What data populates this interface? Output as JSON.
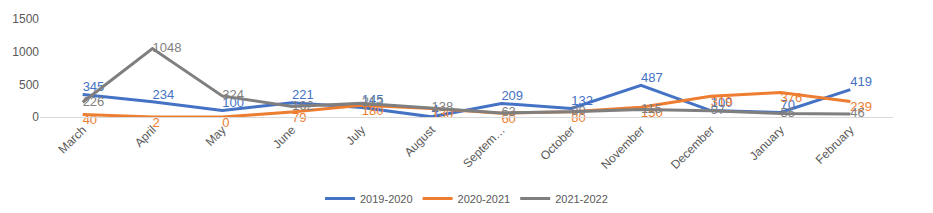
{
  "chart_data": {
    "type": "line",
    "categories": [
      "March",
      "April",
      "May",
      "June",
      "July",
      "August",
      "Septem…",
      "October",
      "November",
      "December",
      "January",
      "February"
    ],
    "series": [
      {
        "name": "2019-2020",
        "color": "#4472c4",
        "values": [
          345,
          234,
          100,
          221,
          145,
          4,
          209,
          132,
          487,
          100,
          70,
          419
        ]
      },
      {
        "name": "2020-2021",
        "color": "#ed7d31",
        "values": [
          40,
          2,
          0,
          79,
          180,
          130,
          60,
          80,
          150,
          319,
          376,
          239
        ]
      },
      {
        "name": "2021-2022",
        "color": "#7f7f7f",
        "values": [
          226,
          1048,
          324,
          162,
          212,
          138,
          63,
          80,
          115,
          97,
          55,
          46
        ]
      }
    ],
    "ylim": [
      0,
      1500
    ],
    "yticks": [
      0,
      500,
      1000,
      1500
    ],
    "grid": false,
    "legend": "bottom",
    "data_labels": true
  }
}
